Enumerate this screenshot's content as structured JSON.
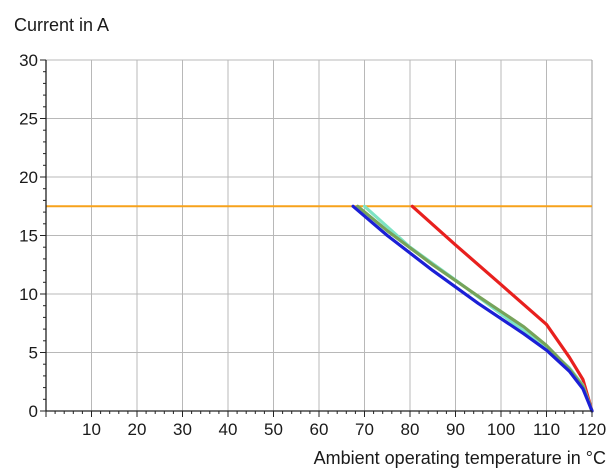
{
  "chart_data": {
    "type": "line",
    "title": "",
    "ylabel": "Current in A",
    "xlabel": "Ambient operating temperature in °C",
    "xlim": [
      0,
      120
    ],
    "ylim": [
      0,
      30
    ],
    "xticks": [
      10,
      20,
      30,
      40,
      50,
      60,
      70,
      80,
      90,
      100,
      110,
      120
    ],
    "yticks": [
      0,
      5,
      10,
      15,
      20,
      25,
      30
    ],
    "grid": true,
    "legend": "none",
    "reference_line": {
      "y": 17.5,
      "color": "#f7a21b"
    },
    "series": [
      {
        "color": "#e8201e",
        "points": [
          [
            80.5,
            17.5
          ],
          [
            90,
            14.2
          ],
          [
            100,
            10.8
          ],
          [
            110,
            7.4
          ],
          [
            115,
            4.6
          ],
          [
            118,
            2.7
          ],
          [
            120,
            0
          ]
        ]
      },
      {
        "color": "#7ee3c4",
        "points": [
          [
            70,
            17.5
          ],
          [
            80,
            14.0
          ],
          [
            90,
            11.2
          ],
          [
            100,
            8.3
          ],
          [
            110,
            5.4
          ],
          [
            115,
            3.7
          ],
          [
            118,
            2.2
          ],
          [
            120,
            0
          ]
        ]
      },
      {
        "color": "#76a35a",
        "points": [
          [
            68.5,
            17.5
          ],
          [
            75,
            15.4
          ],
          [
            85,
            12.5
          ],
          [
            95,
            9.8
          ],
          [
            105,
            7.2
          ],
          [
            110,
            5.6
          ],
          [
            115,
            3.6
          ],
          [
            118,
            2.1
          ],
          [
            120,
            0
          ]
        ]
      },
      {
        "color": "#1b1fd6",
        "points": [
          [
            67.5,
            17.5
          ],
          [
            75,
            15.0
          ],
          [
            85,
            12.0
          ],
          [
            95,
            9.2
          ],
          [
            105,
            6.6
          ],
          [
            110,
            5.2
          ],
          [
            115,
            3.4
          ],
          [
            118,
            1.9
          ],
          [
            120,
            0
          ]
        ]
      }
    ]
  }
}
